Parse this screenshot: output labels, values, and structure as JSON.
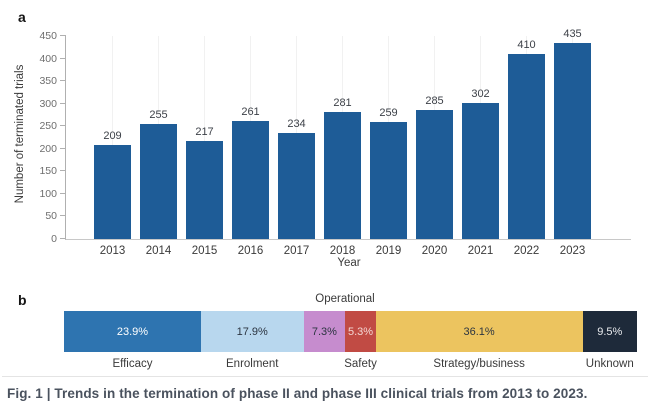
{
  "figure": {
    "panel_a_label": "a",
    "panel_b_label": "b",
    "caption": "Fig. 1 | Trends in the termination of phase II and phase III clinical trials from 2013 to 2023."
  },
  "colors": {
    "bar_blue": "#1e5c97",
    "axis_line": "#b0b0b0",
    "baseline": "#c8c8c8",
    "tick_text": "#6e6e6e",
    "label_text": "#3a3a3a",
    "caption_text": "#4a525e"
  },
  "chart_data": [
    {
      "type": "bar",
      "panel": "a",
      "title": "",
      "categories": [
        "2013",
        "2014",
        "2015",
        "2016",
        "2017",
        "2018",
        "2019",
        "2020",
        "2021",
        "2022",
        "2023"
      ],
      "values": [
        209,
        255,
        217,
        261,
        234,
        281,
        259,
        285,
        302,
        410,
        435
      ],
      "xlabel": "Year",
      "ylabel": "Number of terminated trials",
      "ylim": [
        0,
        450
      ],
      "ytick_step": 50,
      "bar_color": "#1e5c97",
      "grid": "faint vertical gridlines at each category",
      "legend_position": "none",
      "value_labels": "above bars"
    },
    {
      "type": "bar",
      "subtype": "horizontal-stacked-100pct",
      "panel": "b",
      "title": "",
      "segments": [
        {
          "label": "Efficacy",
          "value": 23.9,
          "display": "23.9%",
          "color": "#2e74b0",
          "text_color": "#ffffff",
          "label_position": "below"
        },
        {
          "label": "Enrolment",
          "value": 17.9,
          "display": "17.9%",
          "color": "#b8d7ee",
          "text_color": "#2b3440",
          "label_position": "below"
        },
        {
          "label": "Operational",
          "value": 7.3,
          "display": "7.3%",
          "color": "#c68cce",
          "text_color": "#2b3440",
          "label_position": "above"
        },
        {
          "label": "Safety",
          "value": 5.3,
          "display": "5.3%",
          "color": "#c14b44",
          "text_color": "#f3d7d4",
          "label_position": "below"
        },
        {
          "label": "Strategy/business",
          "value": 36.1,
          "display": "36.1%",
          "color": "#ecc45f",
          "text_color": "#2b3440",
          "label_position": "below"
        },
        {
          "label": "Unknown",
          "value": 9.5,
          "display": "9.5%",
          "color": "#1e2a3a",
          "text_color": "#e9ebee",
          "label_position": "below"
        }
      ]
    }
  ]
}
